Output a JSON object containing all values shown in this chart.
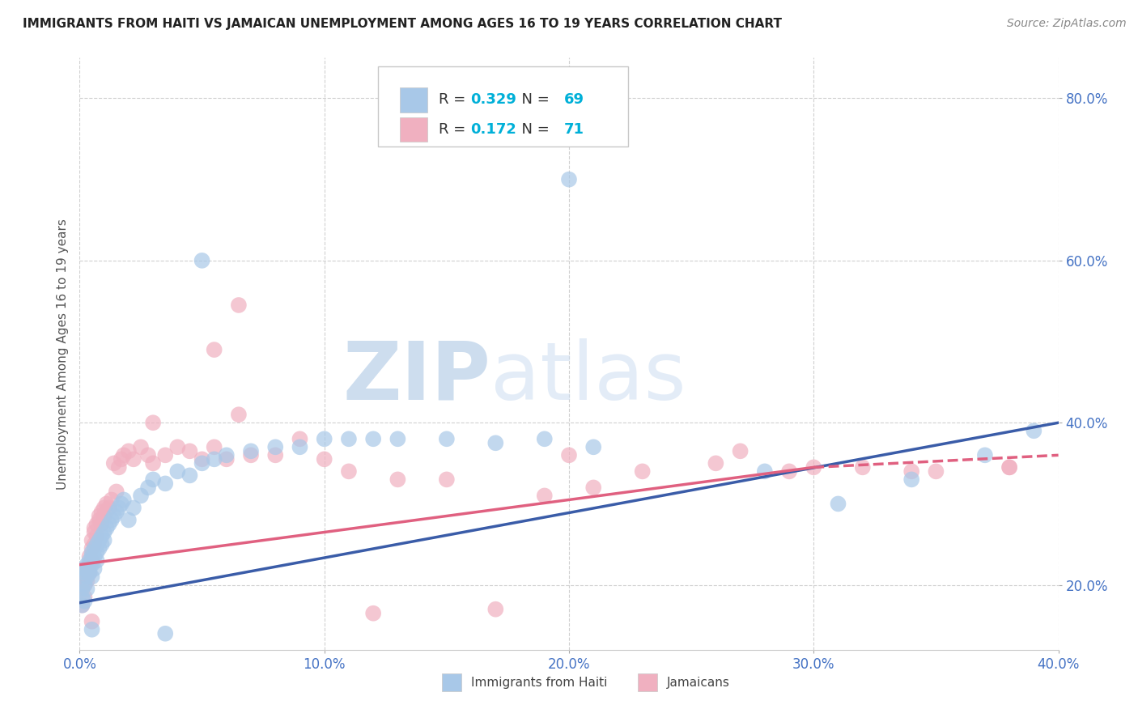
{
  "title": "IMMIGRANTS FROM HAITI VS JAMAICAN UNEMPLOYMENT AMONG AGES 16 TO 19 YEARS CORRELATION CHART",
  "source": "Source: ZipAtlas.com",
  "ylabel": "Unemployment Among Ages 16 to 19 years",
  "xlabel_blue": "Immigrants from Haiti",
  "xlabel_pink": "Jamaicans",
  "xlim": [
    0.0,
    0.4
  ],
  "ylim": [
    0.12,
    0.85
  ],
  "xticks": [
    0.0,
    0.1,
    0.2,
    0.3,
    0.4
  ],
  "yticks": [
    0.2,
    0.4,
    0.6,
    0.8
  ],
  "ytick_labels": [
    "20.0%",
    "40.0%",
    "60.0%",
    "80.0%"
  ],
  "xtick_labels": [
    "0.0%",
    "10.0%",
    "20.0%",
    "30.0%",
    "40.0%"
  ],
  "blue_R": 0.329,
  "blue_N": 69,
  "pink_R": 0.172,
  "pink_N": 71,
  "blue_color": "#a8c8e8",
  "pink_color": "#f0b0c0",
  "blue_line_color": "#3a5ca8",
  "pink_line_color": "#e06080",
  "watermark_zip": "ZIP",
  "watermark_atlas": "atlas",
  "watermark_color": "#ccdcec",
  "background_color": "#ffffff",
  "grid_color": "#d0d0d0",
  "blue_scatter_x": [
    0.001,
    0.001,
    0.001,
    0.002,
    0.002,
    0.002,
    0.002,
    0.003,
    0.003,
    0.003,
    0.003,
    0.004,
    0.004,
    0.004,
    0.005,
    0.005,
    0.005,
    0.005,
    0.006,
    0.006,
    0.006,
    0.007,
    0.007,
    0.007,
    0.008,
    0.008,
    0.009,
    0.009,
    0.01,
    0.01,
    0.011,
    0.012,
    0.013,
    0.014,
    0.015,
    0.016,
    0.017,
    0.018,
    0.02,
    0.022,
    0.025,
    0.028,
    0.03,
    0.035,
    0.04,
    0.045,
    0.05,
    0.055,
    0.06,
    0.07,
    0.08,
    0.09,
    0.1,
    0.11,
    0.12,
    0.13,
    0.15,
    0.17,
    0.19,
    0.21,
    0.05,
    0.2,
    0.28,
    0.31,
    0.34,
    0.37,
    0.035,
    0.39,
    0.005
  ],
  "blue_scatter_y": [
    0.185,
    0.195,
    0.175,
    0.2,
    0.215,
    0.18,
    0.22,
    0.215,
    0.225,
    0.21,
    0.195,
    0.23,
    0.22,
    0.215,
    0.24,
    0.225,
    0.235,
    0.21,
    0.245,
    0.235,
    0.22,
    0.25,
    0.24,
    0.23,
    0.255,
    0.245,
    0.26,
    0.25,
    0.265,
    0.255,
    0.27,
    0.275,
    0.28,
    0.285,
    0.29,
    0.295,
    0.3,
    0.305,
    0.28,
    0.295,
    0.31,
    0.32,
    0.33,
    0.325,
    0.34,
    0.335,
    0.35,
    0.355,
    0.36,
    0.365,
    0.37,
    0.37,
    0.38,
    0.38,
    0.38,
    0.38,
    0.38,
    0.375,
    0.38,
    0.37,
    0.6,
    0.7,
    0.34,
    0.3,
    0.33,
    0.36,
    0.14,
    0.39,
    0.145
  ],
  "pink_scatter_x": [
    0.001,
    0.001,
    0.002,
    0.002,
    0.002,
    0.003,
    0.003,
    0.003,
    0.004,
    0.004,
    0.004,
    0.005,
    0.005,
    0.005,
    0.006,
    0.006,
    0.006,
    0.007,
    0.007,
    0.008,
    0.008,
    0.009,
    0.009,
    0.01,
    0.01,
    0.011,
    0.012,
    0.013,
    0.014,
    0.015,
    0.016,
    0.017,
    0.018,
    0.02,
    0.022,
    0.025,
    0.028,
    0.03,
    0.035,
    0.04,
    0.045,
    0.05,
    0.055,
    0.06,
    0.065,
    0.07,
    0.08,
    0.09,
    0.1,
    0.11,
    0.12,
    0.13,
    0.15,
    0.17,
    0.19,
    0.21,
    0.23,
    0.26,
    0.29,
    0.32,
    0.35,
    0.38,
    0.03,
    0.055,
    0.065,
    0.2,
    0.27,
    0.3,
    0.34,
    0.38,
    0.005
  ],
  "pink_scatter_y": [
    0.195,
    0.175,
    0.21,
    0.2,
    0.185,
    0.22,
    0.215,
    0.205,
    0.225,
    0.235,
    0.215,
    0.245,
    0.255,
    0.23,
    0.265,
    0.25,
    0.27,
    0.275,
    0.26,
    0.28,
    0.285,
    0.29,
    0.275,
    0.295,
    0.285,
    0.3,
    0.295,
    0.305,
    0.35,
    0.315,
    0.345,
    0.355,
    0.36,
    0.365,
    0.355,
    0.37,
    0.36,
    0.35,
    0.36,
    0.37,
    0.365,
    0.355,
    0.37,
    0.355,
    0.545,
    0.36,
    0.36,
    0.38,
    0.355,
    0.34,
    0.165,
    0.33,
    0.33,
    0.17,
    0.31,
    0.32,
    0.34,
    0.35,
    0.34,
    0.345,
    0.34,
    0.345,
    0.4,
    0.49,
    0.41,
    0.36,
    0.365,
    0.345,
    0.34,
    0.345,
    0.155
  ]
}
